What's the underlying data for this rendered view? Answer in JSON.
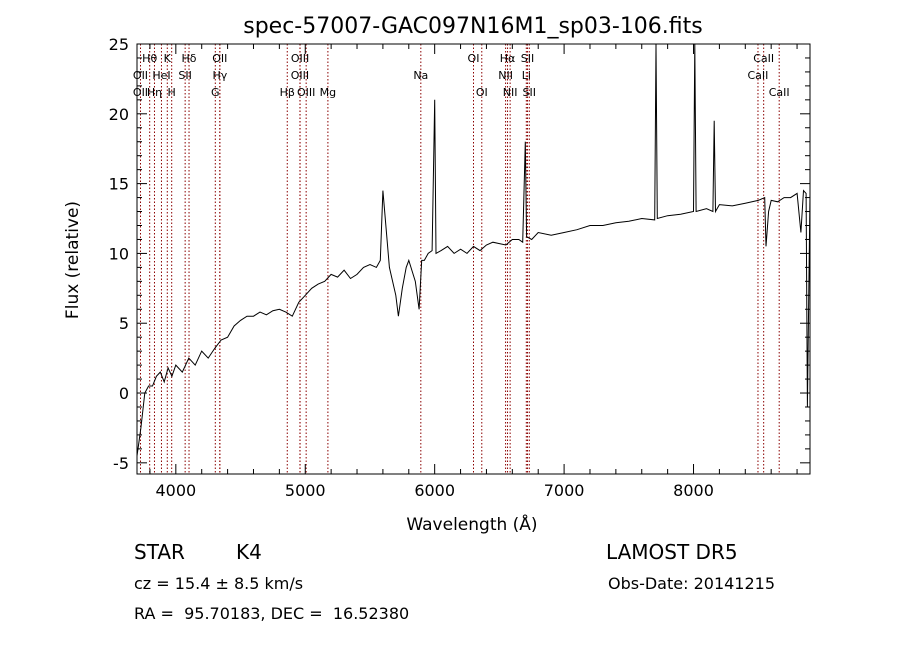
{
  "chart_data": {
    "type": "line",
    "title": "spec-57007-GAC097N16M1_sp03-106.fits",
    "xlabel": "Wavelength (Å)",
    "ylabel": "Flux (relative)",
    "xlim": [
      3700,
      8900
    ],
    "ylim": [
      -5.8,
      25
    ],
    "xticks": [
      4000,
      5000,
      6000,
      7000,
      8000
    ],
    "yticks": [
      -5,
      0,
      5,
      10,
      15,
      20,
      25
    ],
    "grid": false,
    "line_color": "#000000",
    "marker_color": "#8b0000",
    "series": [
      {
        "x": [
          3700,
          3730,
          3760,
          3790,
          3820,
          3850,
          3880,
          3910,
          3940,
          3970,
          4000,
          4050,
          4100,
          4150,
          4200,
          4250,
          4300,
          4350,
          4400,
          4450,
          4500,
          4550,
          4600,
          4650,
          4700,
          4750,
          4800,
          4850,
          4900,
          4950,
          5000,
          5050,
          5100,
          5150,
          5200,
          5250,
          5300,
          5350,
          5400,
          5450,
          5500,
          5550,
          5580,
          5600,
          5650,
          5700,
          5720,
          5750,
          5780,
          5800,
          5850,
          5880,
          5900,
          5920,
          5950,
          5980,
          6000,
          6010,
          6050,
          6100,
          6150,
          6200,
          6250,
          6300,
          6350,
          6400,
          6450,
          6500,
          6550,
          6600,
          6650,
          6680,
          6700,
          6710,
          6750,
          6800,
          6900,
          7000,
          7100,
          7200,
          7300,
          7400,
          7500,
          7600,
          7700,
          7710,
          7720,
          7800,
          7900,
          8000,
          8010,
          8020,
          8100,
          8150,
          8160,
          8170,
          8200,
          8300,
          8400,
          8500,
          8550,
          8560,
          8580,
          8600,
          8650,
          8700,
          8750,
          8800,
          8830,
          8850,
          8870,
          8880,
          8900
        ],
        "y": [
          -4.5,
          -2.5,
          0,
          0.5,
          0.5,
          1.2,
          1.5,
          0.8,
          1.8,
          1.2,
          2.0,
          1.5,
          2.5,
          2.0,
          3.0,
          2.5,
          3.2,
          3.8,
          4.0,
          4.8,
          5.2,
          5.5,
          5.5,
          5.8,
          5.6,
          5.9,
          6.0,
          5.8,
          5.5,
          6.5,
          7.0,
          7.5,
          7.8,
          8.0,
          8.5,
          8.3,
          8.8,
          8.2,
          8.5,
          9.0,
          9.2,
          9.0,
          9.5,
          14.5,
          9.0,
          7.0,
          5.5,
          7.5,
          9.0,
          9.5,
          8.0,
          6.0,
          9.5,
          9.5,
          10.0,
          10.2,
          21.0,
          10.0,
          10.2,
          10.5,
          10.0,
          10.3,
          10.0,
          10.5,
          10.2,
          10.6,
          10.8,
          10.7,
          10.6,
          11.0,
          11.0,
          10.8,
          18.0,
          11.2,
          11.0,
          11.5,
          11.3,
          11.5,
          11.7,
          12.0,
          12.0,
          12.2,
          12.3,
          12.5,
          12.4,
          25.0,
          12.5,
          12.7,
          12.8,
          13.0,
          25.0,
          13.0,
          13.2,
          13.0,
          19.5,
          13.0,
          13.5,
          13.4,
          13.6,
          13.8,
          14.0,
          10.5,
          13.0,
          13.8,
          13.7,
          14.0,
          14.0,
          14.3,
          11.5,
          14.5,
          14.3,
          -1.0,
          14.3
        ]
      }
    ],
    "lines": [
      {
        "label": "Hθ",
        "x": 3798,
        "row": 0
      },
      {
        "label": "K",
        "x": 3934,
        "row": 0
      },
      {
        "label": "Hδ",
        "x": 4102,
        "row": 0
      },
      {
        "label": "OII",
        "x": 4340,
        "row": 0
      },
      {
        "label": "OIII",
        "x": 4960,
        "row": 0
      },
      {
        "label": "OI",
        "x": 6300,
        "row": 0
      },
      {
        "label": "Hα",
        "x": 6563,
        "row": 0
      },
      {
        "label": "SII",
        "x": 6717,
        "row": 0
      },
      {
        "label": "CaII",
        "x": 8542,
        "row": 0
      },
      {
        "label": "OII",
        "x": 3727,
        "row": 1
      },
      {
        "label": "HeI",
        "x": 3889,
        "row": 1
      },
      {
        "label": "SII",
        "x": 4072,
        "row": 1
      },
      {
        "label": "Hγ",
        "x": 4340,
        "row": 1
      },
      {
        "label": "OIII",
        "x": 4959,
        "row": 1
      },
      {
        "label": "Na",
        "x": 5893,
        "row": 1
      },
      {
        "label": "NII",
        "x": 6548,
        "row": 1
      },
      {
        "label": "Li",
        "x": 6708,
        "row": 1
      },
      {
        "label": "CaII",
        "x": 8498,
        "row": 1
      },
      {
        "label": "OII",
        "x": 3727,
        "row": 2
      },
      {
        "label": "Hη",
        "x": 3835,
        "row": 2
      },
      {
        "label": "H",
        "x": 3968,
        "row": 2
      },
      {
        "label": "G",
        "x": 4305,
        "row": 2
      },
      {
        "label": "Hβ",
        "x": 4861,
        "row": 2
      },
      {
        "label": "OIII",
        "x": 5007,
        "row": 2
      },
      {
        "label": "Mg",
        "x": 5175,
        "row": 2
      },
      {
        "label": "OI",
        "x": 6364,
        "row": 2
      },
      {
        "label": "NII",
        "x": 6583,
        "row": 2
      },
      {
        "label": "SII",
        "x": 6731,
        "row": 2
      },
      {
        "label": "CaII",
        "x": 8662,
        "row": 2
      }
    ]
  },
  "info": {
    "class": "STAR",
    "subclass": "K4",
    "survey": "LAMOST DR5",
    "cz": "cz = 15.4 ± 8.5 km/s",
    "obs_date": "Obs-Date: 20141215",
    "coords": "RA =  95.70183, DEC =  16.52380"
  }
}
